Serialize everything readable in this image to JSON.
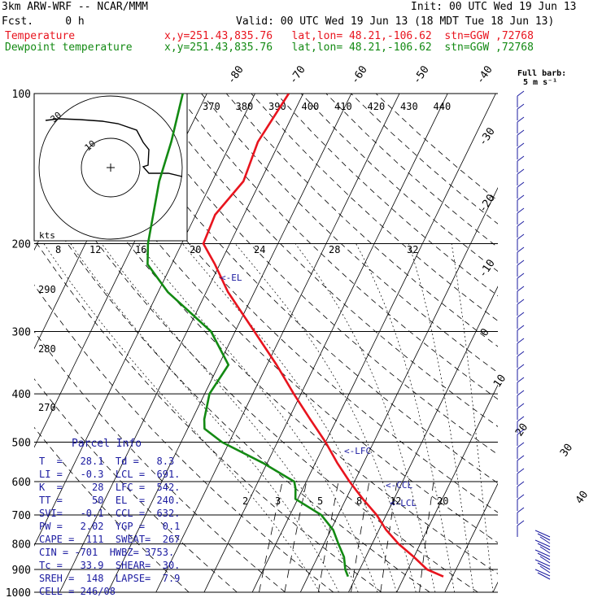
{
  "header": {
    "model": "3km ARW-WRF -- NCAR/MMM",
    "init": "Init: 00 UTC Wed 19 Jun 13",
    "fcst": "Fcst.     0 h",
    "valid": "Valid: 00 UTC Wed 19 Jun 13 (18 MDT Tue 18 Jun 13)",
    "temp_label": "Temperature",
    "temp_loc": "x,y=251.43,835.76   lat,lon= 48.21,-106.62  stn=GGW ,72768",
    "dew_label": "Dewpoint temperature",
    "dew_loc": "x,y=251.43,835.76   lat,lon= 48.21,-106.62  stn=GGW ,72768"
  },
  "barb_legend": {
    "line1": "Full barb:",
    "line2": "5 m s⁻¹"
  },
  "colors": {
    "temperature": "#e8141e",
    "dewpoint": "#138a13",
    "parcel_text": "#1a1aa0",
    "barbs": "#1a1aa0"
  },
  "parcel_info": {
    "title": "Parcel Info",
    "rows": [
      "T  =   28.1  Td =   8.3",
      "LI =   -0.3  LCL =  691.",
      "K  =     28  LFC =  542.",
      "TT =     50  EL  =  240.",
      "SVI=   -0.1  CCL =  632.",
      "PW =   2.02  YGP =   0.1",
      "CAPE =  111  SWEAT=  267",
      "CIN = -701  HWBZ= 3753.",
      "Tc =   33.9  SHEAR=  30.",
      "SREH =  148  LAPSE=  7.9",
      "CELL = 246/08"
    ]
  },
  "chart_data": {
    "type": "line",
    "title": "",
    "y_axis": {
      "label": "",
      "scale": "log",
      "range": [
        1000,
        100
      ],
      "ticks": [
        100,
        200,
        300,
        400,
        500,
        600,
        700,
        800,
        900,
        1000
      ]
    },
    "isotherm_labels": [
      "-80",
      "-70",
      "-60",
      "-50",
      "-40",
      "-30",
      "-20",
      "-10",
      "0",
      "10",
      "20",
      "30",
      "40"
    ],
    "potential_temp_labels": [
      "370",
      "380",
      "390",
      "400",
      "410",
      "420",
      "430",
      "440"
    ],
    "dry_adiabat_labels": [
      "290",
      "280",
      "270"
    ],
    "moist_adiabat_labels": [
      "8",
      "12",
      "16",
      "20",
      "24",
      "28",
      "32"
    ],
    "mixing_ratio_labels": [
      "2",
      "3",
      "5",
      "8",
      "12",
      "20"
    ],
    "markers": [
      "EL",
      "LFC",
      "CCL",
      "LCL"
    ],
    "hodograph": {
      "speed_unit": "kts",
      "ring_labels": [
        "10",
        "30"
      ]
    },
    "series": [
      {
        "name": "Temperature",
        "pressure_hPa": [
          930,
          900,
          850,
          800,
          750,
          700,
          650,
          600,
          550,
          500,
          450,
          400,
          350,
          300,
          250,
          220,
          200,
          175,
          150,
          125,
          100
        ],
        "temp_C": [
          28.1,
          24.0,
          20.0,
          15.5,
          11.5,
          8.0,
          3.5,
          -1.0,
          -5.5,
          -10.0,
          -15.5,
          -21.5,
          -28.0,
          -36.0,
          -45.5,
          -51.0,
          -55.5,
          -56.0,
          -53.5,
          -54.5,
          -53.0
        ]
      },
      {
        "name": "Dewpoint temperature",
        "pressure_hPa": [
          930,
          900,
          850,
          800,
          750,
          700,
          650,
          620,
          600,
          550,
          500,
          470,
          450,
          400,
          350,
          300,
          250,
          220,
          200,
          150,
          125,
          100
        ],
        "dewpoint_C": [
          8.3,
          7.0,
          5.5,
          3.0,
          0.5,
          -3.5,
          -10.5,
          -11.5,
          -12.5,
          -21.0,
          -31.5,
          -36.5,
          -37.5,
          -39.0,
          -38.0,
          -45.0,
          -58.0,
          -65.0,
          -67.0,
          -71.0,
          -72.5,
          -75.0
        ]
      }
    ],
    "wind_profile_units": "m s-1"
  }
}
